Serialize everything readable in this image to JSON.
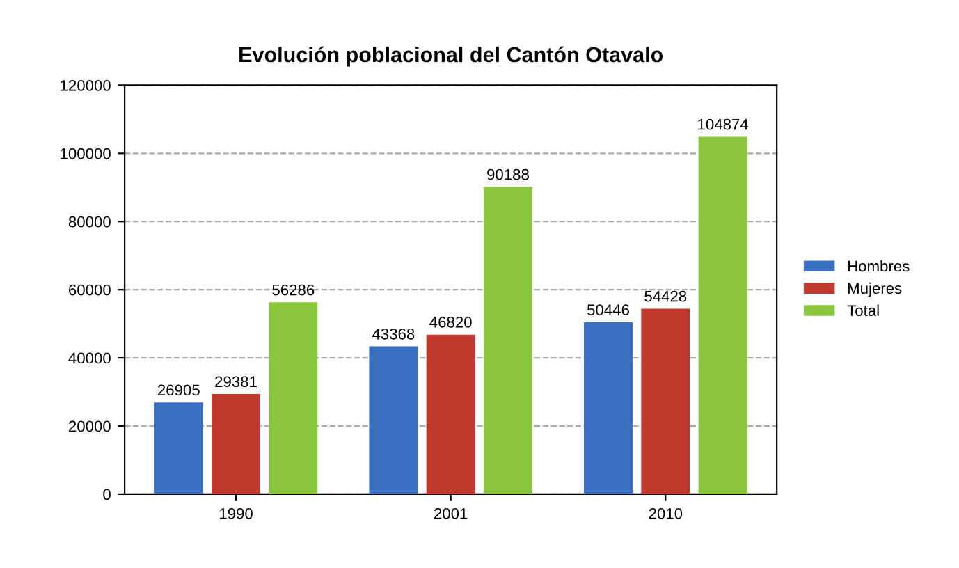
{
  "chart_data": {
    "type": "bar",
    "title": "Evolución poblacional del Cantón Otavalo",
    "categories": [
      "1990",
      "2001",
      "2010"
    ],
    "series": [
      {
        "name": "Hombres",
        "color": "#3b6fc2",
        "values": [
          26905,
          43368,
          50446
        ]
      },
      {
        "name": "Mujeres",
        "color": "#c0392f",
        "values": [
          29381,
          46820,
          54428
        ]
      },
      {
        "name": "Total",
        "color": "#8cc63e",
        "values": [
          56286,
          90188,
          104874
        ]
      }
    ],
    "ylim": [
      0,
      120000
    ],
    "yticks": [
      0,
      20000,
      40000,
      60000,
      80000,
      100000,
      120000
    ],
    "grid": "y",
    "legend": "right",
    "data_labels": true
  }
}
